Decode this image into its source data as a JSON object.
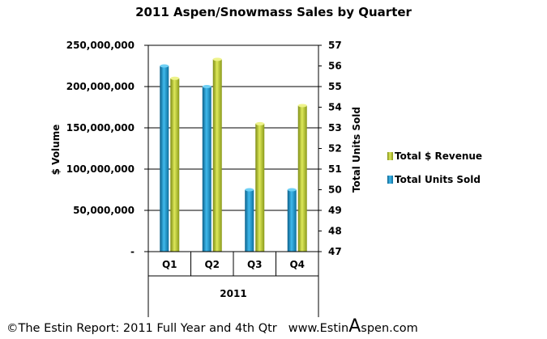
{
  "chart_data": {
    "type": "bar",
    "title": "2011 Aspen/Snowmass Sales by Quarter",
    "categories": [
      "Q1",
      "Q2",
      "Q3",
      "Q4"
    ],
    "xlabel": "2011",
    "ylabel": "$ Volume",
    "y2label": "Total Units Sold",
    "ylim": [
      0,
      250000000
    ],
    "y2lim": [
      47,
      57
    ],
    "y_ticks": [
      "-",
      "50,000,000",
      "100,000,000",
      "150,000,000",
      "200,000,000",
      "250,000,000"
    ],
    "y2_ticks": [
      "47",
      "48",
      "49",
      "50",
      "51",
      "52",
      "53",
      "54",
      "55",
      "56",
      "57"
    ],
    "series": [
      {
        "name": "Total Units Sold",
        "axis": "right",
        "color": "#1e9bd6",
        "values": [
          56,
          55,
          50,
          50
        ]
      },
      {
        "name": "Total $ Revenue",
        "axis": "left",
        "color": "#b5c92a",
        "values": [
          210000000,
          233000000,
          155000000,
          177000000
        ]
      }
    ],
    "legend_position": "right",
    "legend_order": [
      "Total $ Revenue",
      "Total Units Sold"
    ],
    "grid": true
  },
  "footer": {
    "copyright": "©The Estin Report: 2011 Full Year and 4th Qtr",
    "site_pre": "www.Estin",
    "site_big": "A",
    "site_post": "spen.com"
  }
}
